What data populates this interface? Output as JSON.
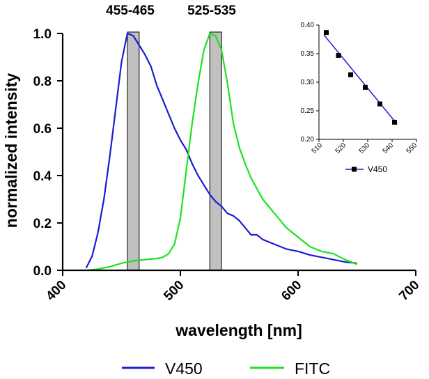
{
  "chart_data": [
    {
      "type": "line",
      "title": "",
      "xlabel": "wavelength [nm]",
      "ylabel": "normalized intensity",
      "xlim": [
        400,
        700
      ],
      "ylim": [
        0,
        1.0
      ],
      "x_ticks": [
        400,
        500,
        600,
        700
      ],
      "x_tick_labels": [
        "400",
        "500",
        "600",
        "700"
      ],
      "y_ticks": [
        0.0,
        0.2,
        0.4,
        0.6,
        0.8,
        1.0
      ],
      "y_tick_labels": [
        "0.0",
        "0.2",
        "0.4",
        "0.6",
        "0.8",
        "1.0"
      ],
      "bands": [
        {
          "label": "455-465",
          "from": 455,
          "to": 465,
          "color": "#c0c0c0"
        },
        {
          "label": "525-535",
          "from": 525,
          "to": 535,
          "color": "#c0c0c0"
        }
      ],
      "series": [
        {
          "name": "V450",
          "color": "#1b1bd4",
          "points": [
            [
              420,
              0.01
            ],
            [
              425,
              0.06
            ],
            [
              430,
              0.16
            ],
            [
              435,
              0.3
            ],
            [
              440,
              0.48
            ],
            [
              445,
              0.68
            ],
            [
              450,
              0.88
            ],
            [
              455,
              1.0
            ],
            [
              460,
              0.99
            ],
            [
              465,
              0.95
            ],
            [
              470,
              0.91
            ],
            [
              475,
              0.86
            ],
            [
              480,
              0.78
            ],
            [
              485,
              0.72
            ],
            [
              490,
              0.66
            ],
            [
              495,
              0.6
            ],
            [
              500,
              0.55
            ],
            [
              505,
              0.51
            ],
            [
              510,
              0.45
            ],
            [
              515,
              0.4
            ],
            [
              520,
              0.36
            ],
            [
              525,
              0.32
            ],
            [
              530,
              0.29
            ],
            [
              535,
              0.27
            ],
            [
              540,
              0.24
            ],
            [
              545,
              0.23
            ],
            [
              550,
              0.21
            ],
            [
              555,
              0.18
            ],
            [
              560,
              0.15
            ],
            [
              565,
              0.15
            ],
            [
              570,
              0.13
            ],
            [
              580,
              0.11
            ],
            [
              590,
              0.09
            ],
            [
              600,
              0.08
            ],
            [
              610,
              0.065
            ],
            [
              620,
              0.055
            ],
            [
              630,
              0.045
            ],
            [
              640,
              0.035
            ],
            [
              650,
              0.03
            ]
          ]
        },
        {
          "name": "FITC",
          "color": "#1ee11e",
          "points": [
            [
              420,
              0.0
            ],
            [
              430,
              0.005
            ],
            [
              440,
              0.015
            ],
            [
              450,
              0.03
            ],
            [
              460,
              0.04
            ],
            [
              470,
              0.045
            ],
            [
              480,
              0.05
            ],
            [
              485,
              0.055
            ],
            [
              490,
              0.07
            ],
            [
              495,
              0.11
            ],
            [
              500,
              0.22
            ],
            [
              505,
              0.42
            ],
            [
              510,
              0.62
            ],
            [
              515,
              0.79
            ],
            [
              520,
              0.93
            ],
            [
              525,
              1.0
            ],
            [
              530,
              0.99
            ],
            [
              535,
              0.93
            ],
            [
              540,
              0.79
            ],
            [
              545,
              0.62
            ],
            [
              550,
              0.52
            ],
            [
              555,
              0.45
            ],
            [
              560,
              0.39
            ],
            [
              570,
              0.3
            ],
            [
              580,
              0.24
            ],
            [
              590,
              0.18
            ],
            [
              600,
              0.14
            ],
            [
              610,
              0.1
            ],
            [
              620,
              0.08
            ],
            [
              630,
              0.07
            ],
            [
              640,
              0.045
            ],
            [
              650,
              0.025
            ]
          ]
        }
      ],
      "legend": {
        "position": "bottom",
        "entries": [
          "V450",
          "FITC"
        ]
      }
    },
    {
      "type": "scatter",
      "title": "",
      "xlim": [
        510,
        550
      ],
      "ylim": [
        0.2,
        0.4
      ],
      "x_tick_labels": [
        "510",
        "520",
        "530",
        "540",
        "550"
      ],
      "y_tick_labels": [
        "0.20",
        "0.25",
        "0.30",
        "0.35",
        "0.40"
      ],
      "series": [
        {
          "name": "V450",
          "color": "#1b1bd4",
          "marker_color": "#000000",
          "x": [
            513,
            518,
            523,
            529,
            535,
            541
          ],
          "y": [
            0.387,
            0.347,
            0.313,
            0.291,
            0.262,
            0.23
          ],
          "fit_line": [
            [
              512,
              0.383
            ],
            [
              542,
              0.227
            ]
          ]
        }
      ],
      "legend": {
        "position": "bottom",
        "entries": [
          "V450"
        ]
      }
    }
  ]
}
